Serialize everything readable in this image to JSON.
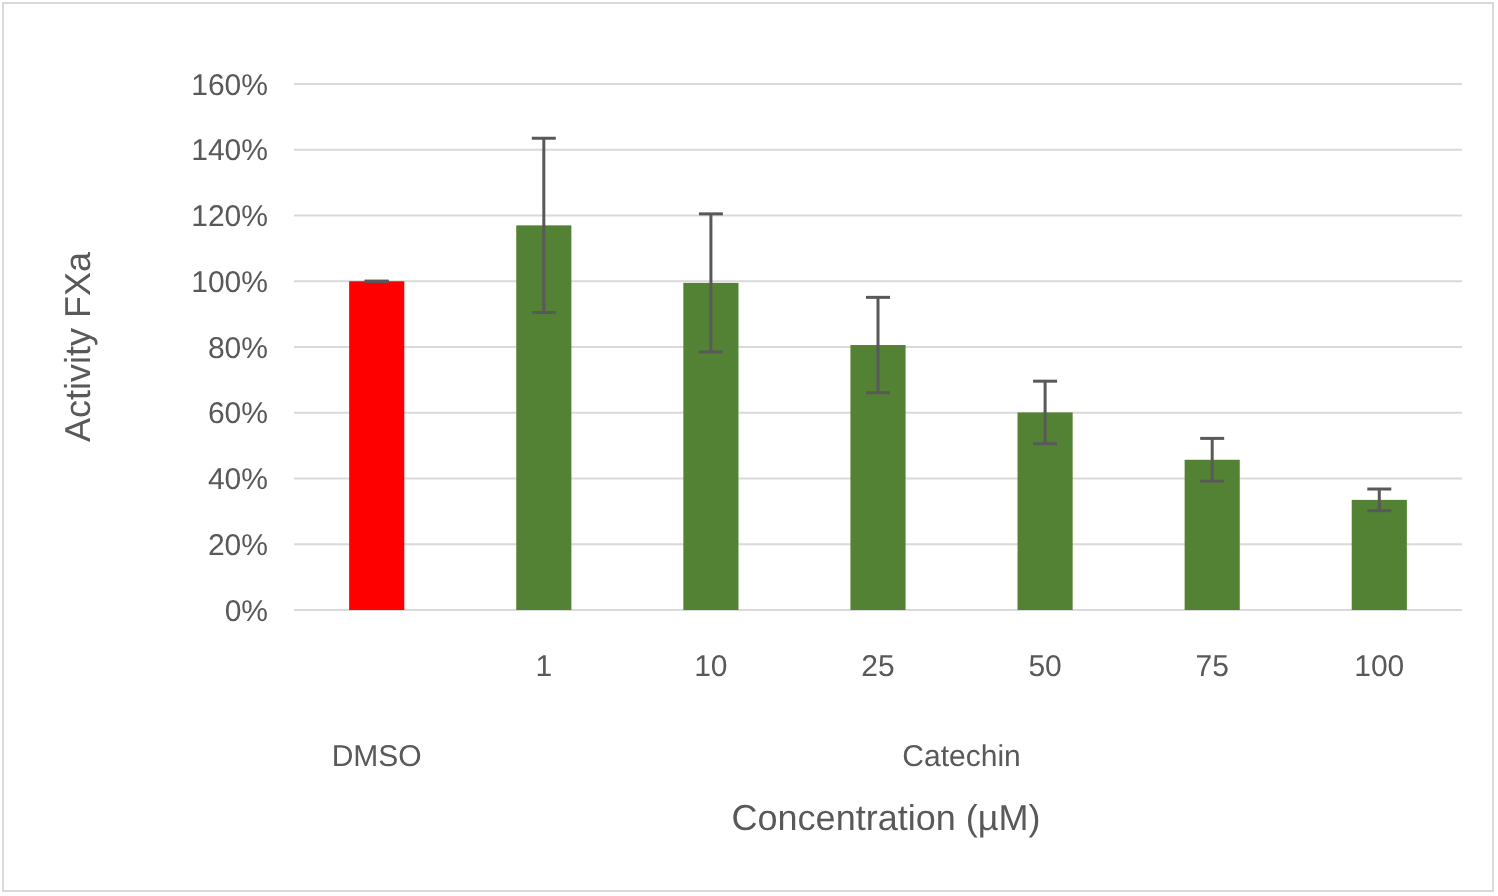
{
  "chart_data": {
    "type": "bar",
    "xlabel": "Concentration (µM)",
    "ylabel": "Activity FXa",
    "categories": [
      null,
      "1",
      "10",
      "25",
      "50",
      "75",
      "100"
    ],
    "values": [
      100,
      117,
      99.5,
      80.6,
      60.1,
      45.7,
      33.5
    ],
    "errors": [
      0,
      26.5,
      21,
      14.5,
      9.5,
      6.5,
      3.3
    ],
    "colors": [
      "#ff0000",
      "#548235",
      "#548235",
      "#548235",
      "#548235",
      "#548235",
      "#548235"
    ],
    "annotations": [
      "DMSO",
      "Catechin"
    ],
    "ylim": [
      0,
      160
    ],
    "yticks": [
      {
        "value": 0,
        "label": "0%"
      },
      {
        "value": 20,
        "label": "20%"
      },
      {
        "value": 40,
        "label": "40%"
      },
      {
        "value": 60,
        "label": "60%"
      },
      {
        "value": 80,
        "label": "80%"
      },
      {
        "value": 100,
        "label": "100%"
      },
      {
        "value": 120,
        "label": "120%"
      },
      {
        "value": 140,
        "label": "140%"
      },
      {
        "value": 160,
        "label": "160%"
      }
    ],
    "grid": "y"
  }
}
